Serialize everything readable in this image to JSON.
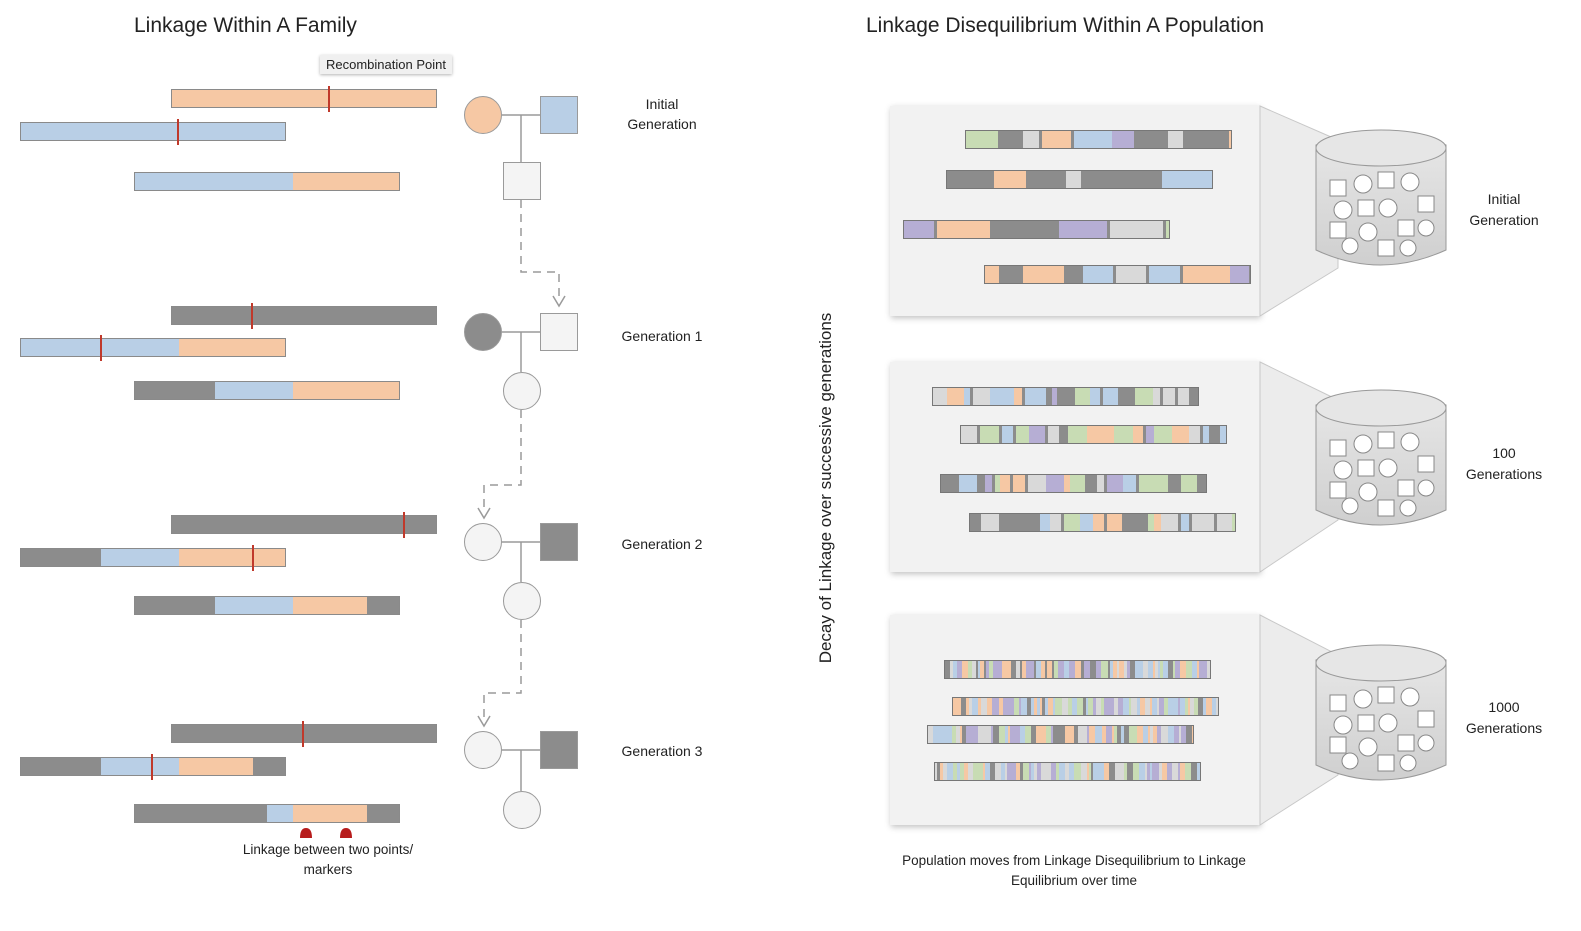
{
  "colors": {
    "blue": "#b9cfe6",
    "orange": "#f6c8a4",
    "grey": "#8c8c8c",
    "green": "#c8dcb4",
    "purple": "#b6aed4",
    "recombination": "#c0392b"
  },
  "family": {
    "title": "Linkage Within A Family",
    "recombination_label": "Recombination Point",
    "generations": [
      {
        "label_lines": [
          "Initial",
          "Generation"
        ]
      },
      {
        "label_lines": [
          "Generation 1"
        ]
      },
      {
        "label_lines": [
          "Generation 2"
        ]
      },
      {
        "label_lines": [
          "Generation 3"
        ]
      }
    ],
    "linkage_note_lines": [
      "Linkage between two points/",
      "markers"
    ]
  },
  "population": {
    "title": "Linkage Disequilibrium Within A Population",
    "axis_label": "Decay of Linkage over successive generations",
    "panels": [
      {
        "label_lines": [
          "Initial",
          "Generation"
        ]
      },
      {
        "label_lines": [
          "100",
          "Generations"
        ]
      },
      {
        "label_lines": [
          "1000",
          "Generations"
        ]
      }
    ],
    "footer_lines": [
      "Population moves from Linkage Disequilibrium to Linkage",
      "Equilibrium over time"
    ]
  }
}
